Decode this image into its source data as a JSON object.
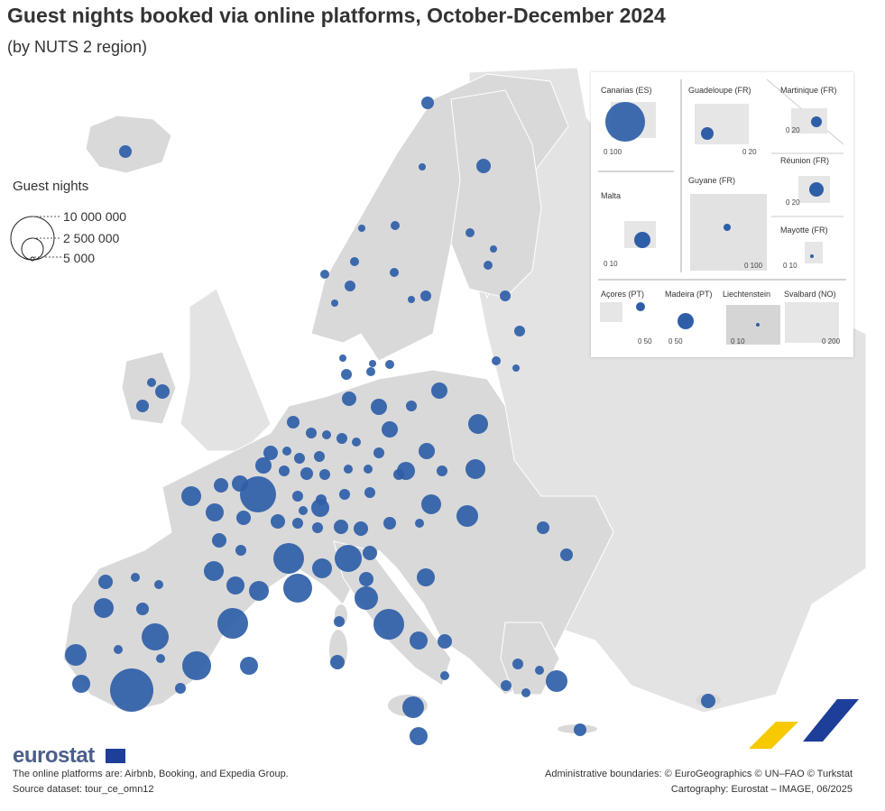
{
  "title": "Guest nights booked via online platforms, October-December 2024",
  "subtitle": "(by NUTS 2 region)",
  "legend": {
    "title": "Guest nights",
    "items": [
      {
        "label": "10 000 000",
        "value": 10000000
      },
      {
        "label": "2 500 000",
        "value": 2500000
      },
      {
        "label": "5 000",
        "value": 5000
      }
    ]
  },
  "insets": [
    {
      "name": "Canarias (ES)",
      "scale_label": "0   100"
    },
    {
      "name": "Guadeloupe (FR)",
      "scale_label": "0   20"
    },
    {
      "name": "Martinique (FR)",
      "scale_label": "0   20"
    },
    {
      "name": "Malta",
      "scale_label": "0   10"
    },
    {
      "name": "Guyane (FR)",
      "scale_label": "0   100"
    },
    {
      "name": "Réunion (FR)",
      "scale_label": "0   20"
    },
    {
      "name": "Mayotte (FR)",
      "scale_label": "0 10"
    },
    {
      "name": "Açores (PT)",
      "scale_label": "0   50"
    },
    {
      "name": "Madeira (PT)",
      "scale_label": "0   50"
    },
    {
      "name": "Liechtenstein",
      "scale_label": "0   10"
    },
    {
      "name": "Svalbard (NO)",
      "scale_label": "0   200"
    }
  ],
  "footer": {
    "brand": "eurostat",
    "note": "The online platforms are: Airbnb, Booking, and Expedia Group.",
    "source": "Source dataset: tour_ce_omn12",
    "copyright": "Administrative boundaries: © EuroGeographics © UN–FAO © Turkstat",
    "cartography": "Cartography: Eurostat – IMAGE, 06/2025"
  },
  "colors": {
    "bubble": "#2f5ea8",
    "land": "#d9d9d9",
    "non_eu_land": "#e6e6e6",
    "sea": "#ffffff",
    "accent_yellow": "#f7c900",
    "accent_blue": "#1d3f9a"
  }
}
